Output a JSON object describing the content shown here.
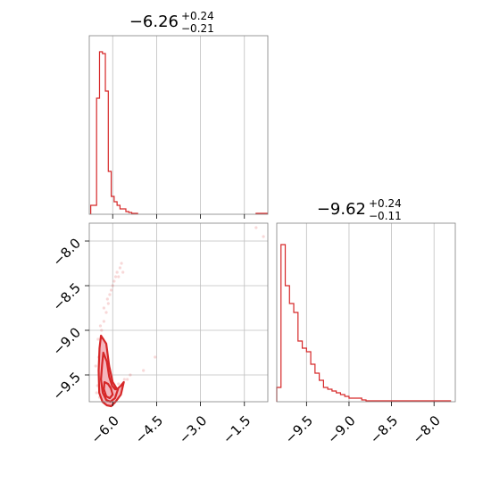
{
  "figure": {
    "panel_x_title": {
      "value": "−6.26",
      "plus": "+0.24",
      "minus": "−0.21"
    },
    "panel_y_title": {
      "value": "−9.62",
      "plus": "+0.24",
      "minus": "−0.11"
    },
    "colors": {
      "series": "#d62728",
      "fill": "#f4b6bd",
      "grid": "#bfbfbf",
      "frame": "#7f7f7f"
    }
  },
  "chart_data": [
    {
      "type": "bar",
      "panel": "marginal-x",
      "bin_edges": [
        -6.75,
        -6.65,
        -6.55,
        -6.45,
        -6.35,
        -6.25,
        -6.15,
        -6.05,
        -5.95,
        -5.85,
        -5.75,
        -5.65,
        -5.55,
        -5.45,
        -5.35,
        -5.25,
        -5.15
      ],
      "values": [
        0.05,
        0.05,
        0.65,
        0.91,
        0.9,
        0.69,
        0.24,
        0.1,
        0.07,
        0.05,
        0.03,
        0.03,
        0.015,
        0.01,
        0.005,
        0.005
      ],
      "tail": {
        "x_from": -1.1,
        "x_to": -0.7,
        "value": 0.005
      },
      "xlim": [
        -6.8,
        -0.7
      ],
      "ylim": [
        0,
        1.0
      ],
      "xticks": [
        -6.0,
        -4.5,
        -3.0,
        -1.5
      ],
      "grid": true,
      "yaxis": "no tick labels"
    },
    {
      "type": "scatter",
      "panel": "joint",
      "x": [
        -6.52,
        -6.45,
        -6.48,
        -6.4,
        -6.33,
        -6.38,
        -6.3,
        -6.22,
        -6.15,
        -6.1,
        -6.05,
        -6.0,
        -5.95,
        -5.9,
        -5.85,
        -5.8,
        -5.75,
        -5.7,
        -5.65,
        -6.55,
        -6.58,
        -6.45,
        -6.35,
        -6.28,
        -6.2,
        -6.1,
        -6.02,
        -5.92,
        -5.8,
        -5.6,
        -6.5,
        -6.42,
        -6.3,
        -6.18,
        -5.5,
        -5.4,
        -4.95,
        -4.55,
        -1.1,
        -0.85
      ],
      "y": [
        -9.62,
        -9.5,
        -9.3,
        -9.2,
        -9.1,
        -9.0,
        -8.9,
        -8.8,
        -8.7,
        -8.6,
        -8.55,
        -8.5,
        -8.45,
        -8.4,
        -8.35,
        -8.4,
        -8.3,
        -8.25,
        -8.35,
        -9.7,
        -9.4,
        -9.75,
        -9.78,
        -9.72,
        -9.8,
        -9.75,
        -9.7,
        -9.65,
        -9.6,
        -9.55,
        -9.1,
        -8.95,
        -8.75,
        -8.65,
        -9.55,
        -9.5,
        -9.45,
        -9.3,
        -7.85,
        -7.95
      ],
      "contours": [
        {
          "level": "outer",
          "x": [
            -6.4,
            -6.22,
            -6.12,
            -6.0,
            -5.85,
            -5.72,
            -5.62,
            -5.72,
            -5.9,
            -6.05,
            -6.2,
            -6.35,
            -6.46,
            -6.48,
            -6.45,
            -6.4
          ],
          "y": [
            -9.06,
            -9.15,
            -9.4,
            -9.58,
            -9.66,
            -9.62,
            -9.58,
            -9.72,
            -9.8,
            -9.85,
            -9.84,
            -9.8,
            -9.7,
            -9.45,
            -9.2,
            -9.06
          ]
        },
        {
          "level": "middle",
          "x": [
            -6.32,
            -6.2,
            -6.12,
            -6.02,
            -5.92,
            -5.82,
            -5.92,
            -6.08,
            -6.22,
            -6.34,
            -6.4,
            -6.36,
            -6.32
          ],
          "y": [
            -9.25,
            -9.35,
            -9.52,
            -9.62,
            -9.66,
            -9.66,
            -9.76,
            -9.8,
            -9.78,
            -9.7,
            -9.55,
            -9.38,
            -9.25
          ]
        },
        {
          "level": "inner",
          "x": [
            -6.28,
            -6.16,
            -6.06,
            -6.0,
            -6.1,
            -6.22,
            -6.3,
            -6.28
          ],
          "y": [
            -9.58,
            -9.6,
            -9.65,
            -9.72,
            -9.76,
            -9.74,
            -9.66,
            -9.58
          ]
        }
      ],
      "xlim": [
        -6.8,
        -0.7
      ],
      "ylim": [
        -9.8,
        -7.8
      ],
      "xticks": [
        -6.0,
        -4.5,
        -3.0,
        -1.5
      ],
      "yticks": [
        -8.0,
        -8.5,
        -9.0,
        -9.5
      ],
      "grid": true
    },
    {
      "type": "bar",
      "panel": "marginal-y",
      "bin_edges": [
        -9.85,
        -9.8,
        -9.75,
        -9.7,
        -9.65,
        -9.6,
        -9.55,
        -9.5,
        -9.45,
        -9.4,
        -9.35,
        -9.3,
        -9.25,
        -9.2,
        -9.15,
        -9.1,
        -9.05,
        -9.0,
        -8.95,
        -8.9,
        -8.85,
        -8.8
      ],
      "values": [
        0.08,
        0.88,
        0.65,
        0.55,
        0.5,
        0.34,
        0.3,
        0.28,
        0.21,
        0.16,
        0.12,
        0.08,
        0.07,
        0.06,
        0.05,
        0.04,
        0.03,
        0.02,
        0.02,
        0.02,
        0.01
      ],
      "tail": {
        "x_from": -8.8,
        "x_to": -7.8,
        "value": 0.005
      },
      "xlim": [
        -9.85,
        -7.75
      ],
      "ylim": [
        0,
        1.0
      ],
      "xticks": [
        -9.5,
        -9.0,
        -8.5,
        -8.0
      ],
      "grid": true,
      "yaxis": "no tick labels"
    }
  ]
}
